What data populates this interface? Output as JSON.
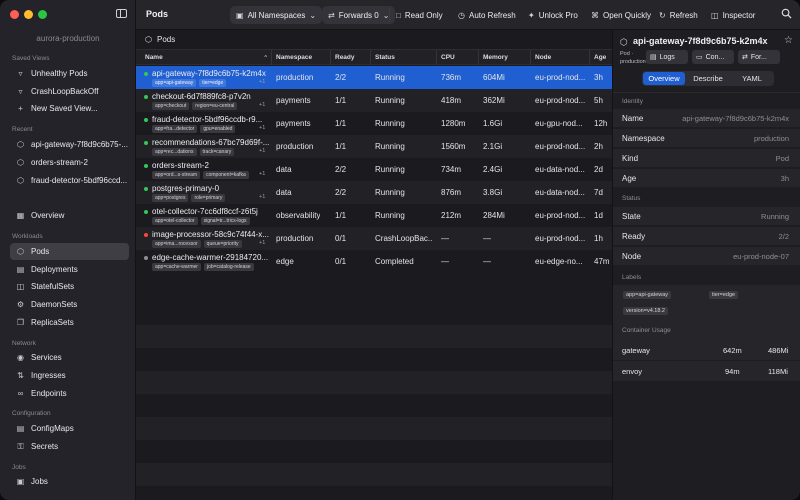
{
  "colors": {
    "accent": "#1f5fd1",
    "status_green": "#34c759",
    "status_red": "#ff453a",
    "status_gray": "#8e8e93"
  },
  "sidebar": {
    "cluster": "aurora-production",
    "saved_views_label": "Saved Views",
    "saved_views": [
      {
        "label": "Unhealthy Pods",
        "icon": "funnel-icon"
      },
      {
        "label": "CrashLoopBackOff",
        "icon": "funnel-icon"
      },
      {
        "label": "New Saved View...",
        "icon": "plus-icon"
      }
    ],
    "recent_label": "Recent",
    "recent": [
      {
        "label": "api-gateway-7f8d9c6b75-..."
      },
      {
        "label": "orders-stream-2"
      },
      {
        "label": "fraud-detector-5bdf96ccd..."
      }
    ],
    "overview": "Overview",
    "workloads_label": "Workloads",
    "workloads": [
      {
        "label": "Pods",
        "active": true
      },
      {
        "label": "Deployments"
      },
      {
        "label": "StatefulSets"
      },
      {
        "label": "DaemonSets"
      },
      {
        "label": "ReplicaSets"
      }
    ],
    "network_label": "Network",
    "network": [
      {
        "label": "Services"
      },
      {
        "label": "Ingresses"
      },
      {
        "label": "Endpoints"
      }
    ],
    "config_label": "Configuration",
    "config": [
      {
        "label": "ConfigMaps"
      },
      {
        "label": "Secrets"
      }
    ],
    "jobs_label": "Jobs",
    "jobs": [
      {
        "label": "Jobs"
      }
    ]
  },
  "toolbar": {
    "title": "Pods",
    "namespaces": "All Namespaces",
    "forwards": "Forwards 0",
    "read_only": "Read Only",
    "auto_refresh": "Auto Refresh",
    "unlock_pro": "Unlock Pro",
    "open_quickly": "Open Quickly",
    "refresh": "Refresh",
    "inspector": "Inspector"
  },
  "list": {
    "title": "Pods",
    "columns": [
      "Name",
      "Namespace",
      "Ready",
      "Status",
      "CPU",
      "Memory",
      "Node",
      "Age"
    ],
    "rows": [
      {
        "name": "api-gateway-7f8d9c6b75-k2m4x",
        "tags": [
          "app=api-gateway",
          "tier=edge"
        ],
        "more": "+1",
        "namespace": "production",
        "ready": "2/2",
        "status": "Running",
        "cpu": "736m",
        "memory": "604Mi",
        "node": "eu-prod-nod...",
        "age": "3h",
        "health": "green",
        "selected": true
      },
      {
        "name": "checkout-6d7f889fc8-p7v2n",
        "tags": [
          "app=checkout",
          "region=eu-central"
        ],
        "more": "+1",
        "namespace": "payments",
        "ready": "1/1",
        "status": "Running",
        "cpu": "418m",
        "memory": "362Mi",
        "node": "eu-prod-nod...",
        "age": "5h",
        "health": "green"
      },
      {
        "name": "fraud-detector-5bdf96ccdb-r9...",
        "tags": [
          "app=fra...detector",
          "gpu=enabled"
        ],
        "more": "+1",
        "namespace": "payments",
        "ready": "1/1",
        "status": "Running",
        "cpu": "1280m",
        "memory": "1.6Gi",
        "node": "eu-gpu-nod...",
        "age": "12h",
        "health": "green"
      },
      {
        "name": "recommendations-67bc79d69f-...",
        "tags": [
          "app=rec...dations",
          "track=canary"
        ],
        "more": "+1",
        "namespace": "production",
        "ready": "1/1",
        "status": "Running",
        "cpu": "1560m",
        "memory": "2.1Gi",
        "node": "eu-prod-nod...",
        "age": "2h",
        "health": "green"
      },
      {
        "name": "orders-stream-2",
        "tags": [
          "app=ord...s-stream",
          "component=kafka"
        ],
        "more": "+1",
        "namespace": "data",
        "ready": "2/2",
        "status": "Running",
        "cpu": "734m",
        "memory": "2.4Gi",
        "node": "eu-data-nod...",
        "age": "2d",
        "health": "green"
      },
      {
        "name": "postgres-primary-0",
        "tags": [
          "app=postgres",
          "role=primary"
        ],
        "more": "+1",
        "namespace": "data",
        "ready": "2/2",
        "status": "Running",
        "cpu": "876m",
        "memory": "3.8Gi",
        "node": "eu-data-nod...",
        "age": "7d",
        "health": "green"
      },
      {
        "name": "otel-collector-7cc6df8ccf-z6t5j",
        "tags": [
          "app=otel-collector",
          "signal=tr...trics-logs"
        ],
        "more": "",
        "namespace": "observability",
        "ready": "1/1",
        "status": "Running",
        "cpu": "212m",
        "memory": "284Mi",
        "node": "eu-prod-nod...",
        "age": "1d",
        "health": "green"
      },
      {
        "name": "image-processor-58c9c74f44-x...",
        "tags": [
          "app=ima...rocessor",
          "queue=priority"
        ],
        "more": "+1",
        "namespace": "production",
        "ready": "0/1",
        "status": "CrashLoopBac...",
        "cpu": "—",
        "memory": "—",
        "node": "eu-prod-nod...",
        "age": "1h",
        "health": "red"
      },
      {
        "name": "edge-cache-warmer-29184720...",
        "tags": [
          "app=cache-warmer",
          "job=catalog-release"
        ],
        "more": "",
        "namespace": "edge",
        "ready": "0/1",
        "status": "Completed",
        "cpu": "—",
        "memory": "—",
        "node": "eu-edge-no...",
        "age": "47m",
        "health": "gray"
      }
    ]
  },
  "inspector": {
    "title": "api-gateway-7f8d9c6b75-k2m4x",
    "subtitle_kind": "Pod",
    "subtitle_dot": "·",
    "subtitle_ns": "production",
    "btn_logs": "Logs",
    "btn_console": "Con...",
    "btn_forward": "For...",
    "tabs": [
      "Overview",
      "Describe",
      "YAML"
    ],
    "identity_label": "Identity",
    "identity": [
      {
        "k": "Name",
        "v": "api-gateway-7f8d9c6b75-k2m4x"
      },
      {
        "k": "Namespace",
        "v": "production"
      },
      {
        "k": "Kind",
        "v": "Pod"
      },
      {
        "k": "Age",
        "v": "3h"
      }
    ],
    "status_label": "Status",
    "status": [
      {
        "k": "State",
        "v": "Running"
      },
      {
        "k": "Ready",
        "v": "2/2"
      },
      {
        "k": "Node",
        "v": "eu-prod-node-07"
      }
    ],
    "labels_label": "Labels",
    "labels": [
      "app=api-gateway",
      "tier=edge",
      "version=v4.18.2"
    ],
    "container_label": "Container Usage",
    "containers": [
      {
        "name": "gateway",
        "cpu": "642m",
        "mem": "486Mi"
      },
      {
        "name": "envoy",
        "cpu": "94m",
        "mem": "118Mi"
      }
    ]
  }
}
